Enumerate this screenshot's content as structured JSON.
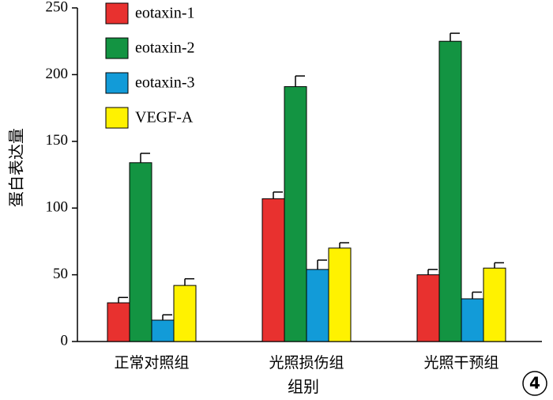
{
  "chart_data": {
    "type": "bar",
    "categories": [
      "正常对照组",
      "光照损伤组",
      "光照干预组"
    ],
    "series": [
      {
        "name": "eotaxin-1",
        "color": "#e8312f",
        "values": [
          29,
          107,
          50
        ],
        "errors": [
          4,
          5,
          4
        ]
      },
      {
        "name": "eotaxin-2",
        "color": "#139442",
        "values": [
          134,
          191,
          225
        ],
        "errors": [
          7,
          8,
          6
        ]
      },
      {
        "name": "eotaxin-3",
        "color": "#129bd8",
        "values": [
          16,
          54,
          32
        ],
        "errors": [
          4,
          7,
          5
        ]
      },
      {
        "name": "VEGF-A",
        "color": "#fff200",
        "values": [
          42,
          70,
          55
        ],
        "errors": [
          5,
          4,
          4
        ]
      }
    ],
    "xlabel": "组别",
    "ylabel": "蛋白表达量",
    "ylim": [
      0,
      250
    ],
    "yticks": [
      0,
      50,
      100,
      150,
      200,
      250
    ],
    "legend_position": "top-left",
    "grid": false
  },
  "panel_label": "4"
}
